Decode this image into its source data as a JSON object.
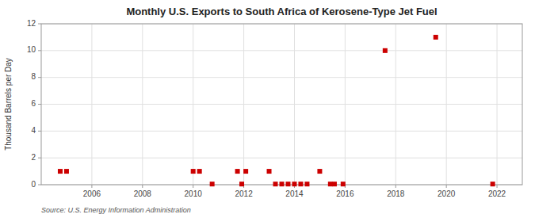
{
  "chart_data": {
    "type": "scatter",
    "title": "Monthly U.S. Exports to South Africa of Kerosene-Type Jet Fuel",
    "ylabel": "Thousand Barrels per Day",
    "annotations": [
      "Source: U.S. Energy Information Administration"
    ],
    "x": [
      2004.75,
      2005.0,
      2010.0,
      2010.25,
      2010.75,
      2011.75,
      2011.92,
      2012.08,
      2013.0,
      2013.25,
      2013.5,
      2013.75,
      2014.0,
      2014.25,
      2014.5,
      2015.0,
      2015.42,
      2015.58,
      2015.92,
      2017.58,
      2019.58,
      2021.83
    ],
    "values": [
      1,
      1,
      1,
      1,
      0.05,
      1,
      0.05,
      1,
      1,
      0.05,
      0.05,
      0.05,
      0.05,
      0.05,
      0.05,
      1,
      0.05,
      0.05,
      0.05,
      10,
      11,
      0.05
    ],
    "color": "#cc0000",
    "marker": "square",
    "xlim": [
      2004.0,
      2023.0
    ],
    "ylim": [
      0,
      12
    ],
    "xticks": [
      2006,
      2008,
      2010,
      2012,
      2014,
      2016,
      2018,
      2020,
      2022
    ],
    "yticks": [
      0,
      2,
      4,
      6,
      8,
      10,
      12
    ],
    "grid": true
  }
}
